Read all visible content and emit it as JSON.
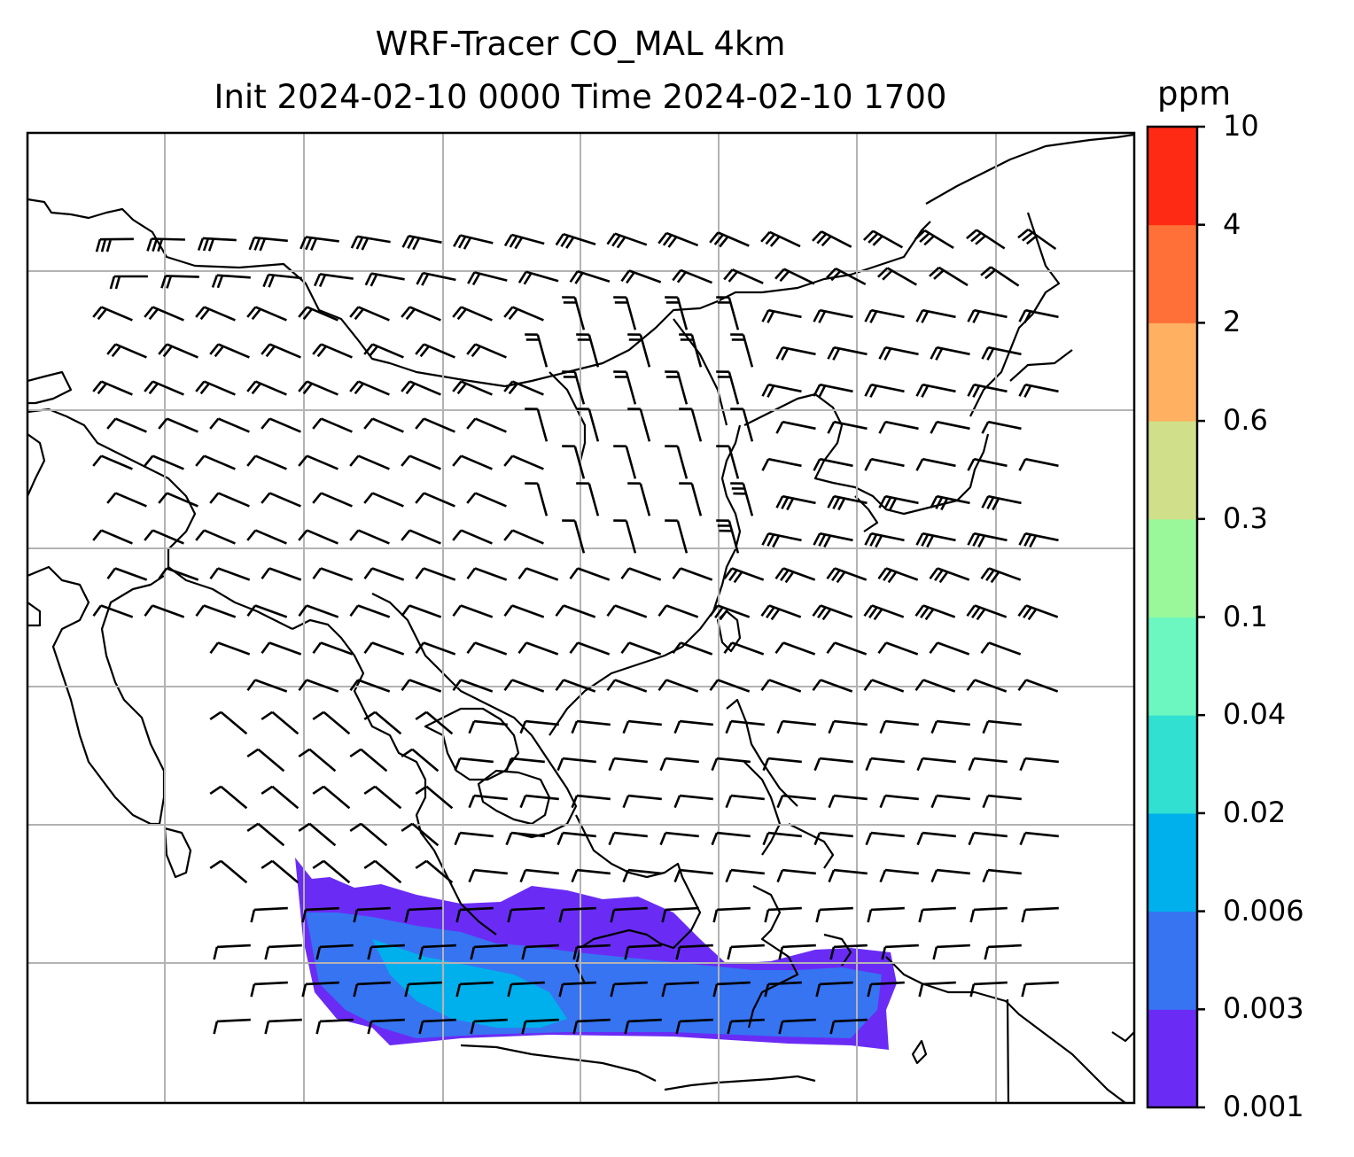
{
  "title": {
    "line1": "WRF-Tracer CO_MAL 4km",
    "line2": "Init 2024-02-10 0000 Time 2024-02-10 1700"
  },
  "colorbar": {
    "unit": "ppm",
    "levels": [
      "0.001",
      "0.003",
      "0.006",
      "0.02",
      "0.04",
      "0.1",
      "0.3",
      "0.6",
      "2",
      "4",
      "10"
    ],
    "colors": [
      "#6a2cf5",
      "#3674f2",
      "#00b0ec",
      "#32e0d2",
      "#6cf7c0",
      "#9af79a",
      "#d0e08a",
      "#ffb060",
      "#ff7038",
      "#ff2a14"
    ]
  },
  "map": {
    "gridlines": "on",
    "plume_levels_present": [
      "0.001",
      "0.003",
      "0.006"
    ]
  }
}
